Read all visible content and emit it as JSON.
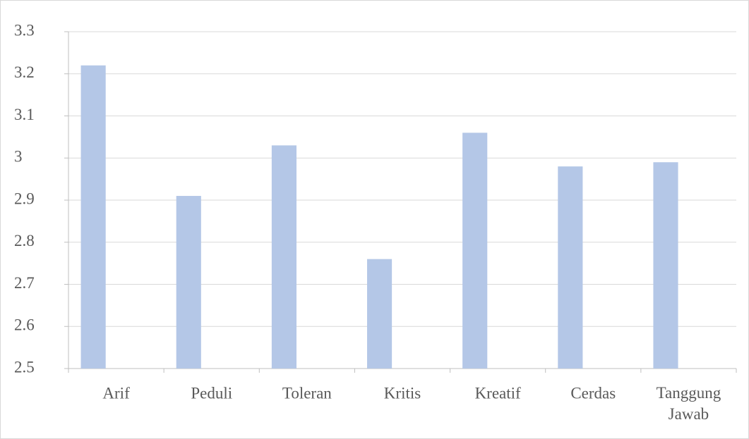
{
  "chart_data": {
    "type": "bar",
    "categories": [
      "Arif",
      "Peduli",
      "Toleran",
      "Kritis",
      "Kreatif",
      "Cerdas",
      "Tanggung Jawab"
    ],
    "values": [
      3.22,
      2.91,
      3.03,
      2.76,
      3.06,
      2.98,
      2.99
    ],
    "color": "#b4c7e7",
    "ylim": [
      2.5,
      3.3
    ],
    "yticks": [
      2.5,
      2.6,
      2.7,
      2.8,
      2.9,
      3,
      3.1,
      3.2,
      3.3
    ],
    "grid": true
  }
}
